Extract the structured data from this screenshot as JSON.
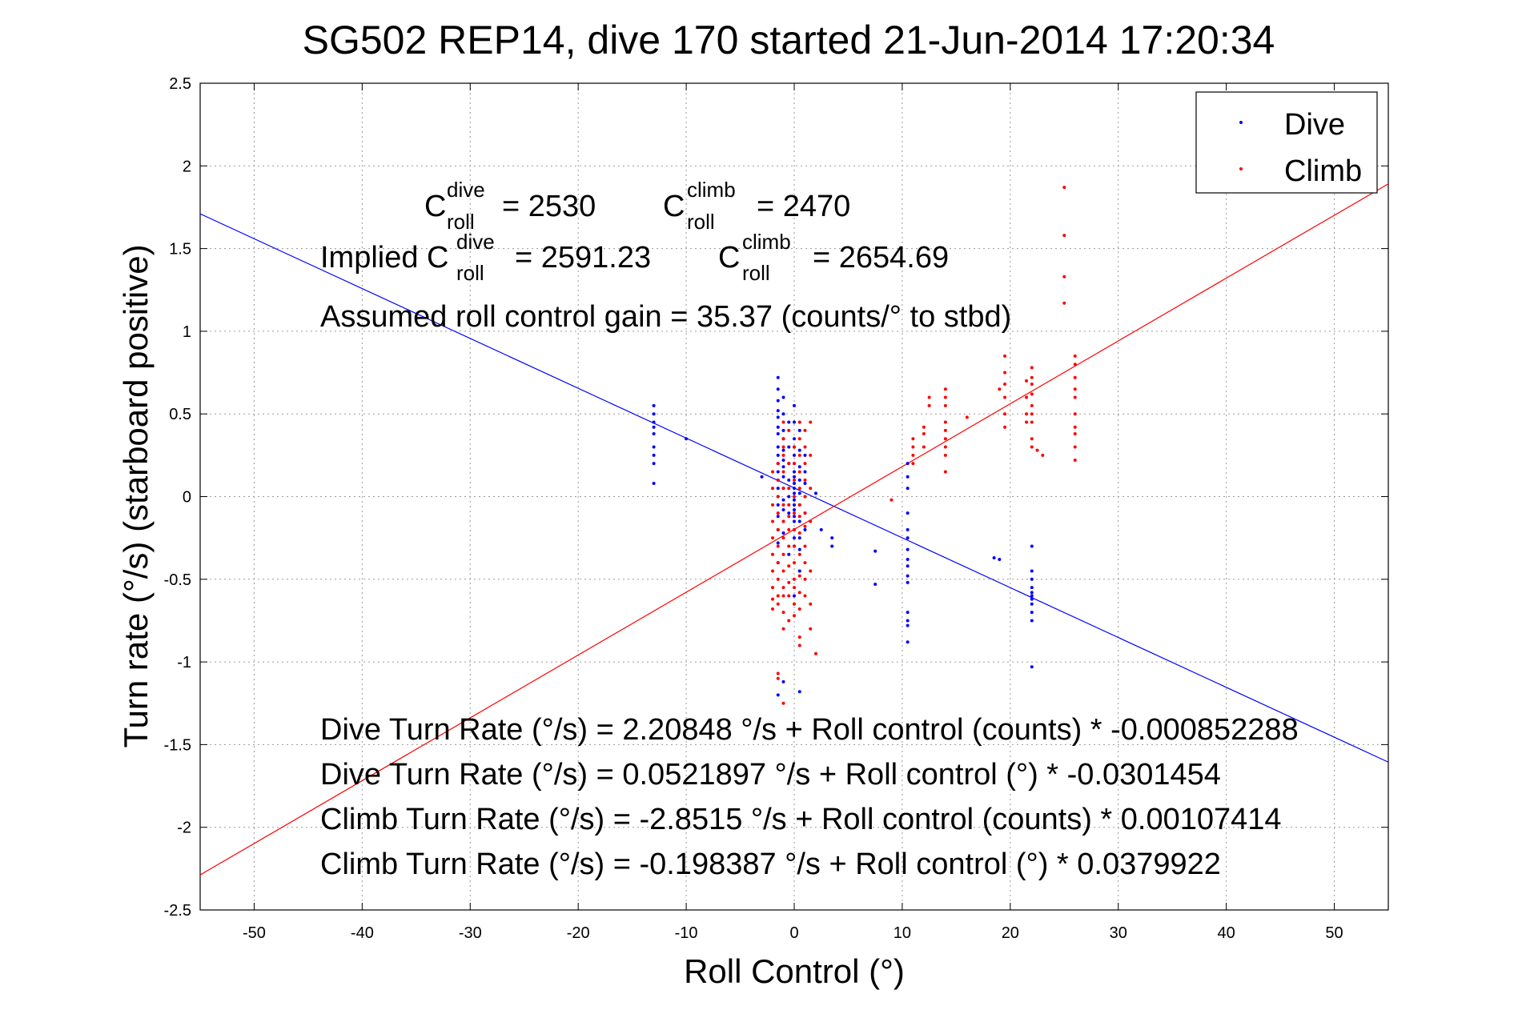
{
  "chart_data": {
    "type": "scatter",
    "title": "SG502 REP14, dive 170 started 21-Jun-2014 17:20:34",
    "xlabel": "Roll Control (°)",
    "ylabel": "Turn rate (°/s) (starboard positive)",
    "xlim": [
      -55,
      55
    ],
    "ylim": [
      -2.5,
      2.5
    ],
    "x_ticks": [
      "-50",
      "-40",
      "-30",
      "-20",
      "-10",
      "0",
      "10",
      "20",
      "30",
      "40",
      "50"
    ],
    "y_ticks": [
      "2.5",
      "2",
      "1.5",
      "1",
      "0.5",
      "0",
      "-0.5",
      "-1",
      "-1.5",
      "-2",
      "-2.5"
    ],
    "grid": true,
    "legend_position": "top-right",
    "series": [
      {
        "name": "Dive",
        "color": "#0000ff",
        "marker": "point",
        "points": [
          [
            -13,
            0.55
          ],
          [
            -13,
            0.5
          ],
          [
            -13,
            0.45
          ],
          [
            -13,
            0.42
          ],
          [
            -13,
            0.38
          ],
          [
            -13,
            0.3
          ],
          [
            -13,
            0.25
          ],
          [
            -13,
            0.2
          ],
          [
            -13,
            0.08
          ],
          [
            -10,
            0.35
          ],
          [
            -3,
            0.12
          ],
          [
            -1.5,
            0.72
          ],
          [
            -1.5,
            0.65
          ],
          [
            -1.5,
            0.58
          ],
          [
            -1.5,
            0.52
          ],
          [
            -1.5,
            0.48
          ],
          [
            -1.5,
            0.42
          ],
          [
            -1.5,
            0.38
          ],
          [
            -1.5,
            0.3
          ],
          [
            -1.5,
            0.25
          ],
          [
            -1.5,
            0.2
          ],
          [
            -1.5,
            0.15
          ],
          [
            -1.5,
            0.1
          ],
          [
            -1.5,
            0.05
          ],
          [
            -1.5,
            0
          ],
          [
            -1.5,
            -0.05
          ],
          [
            -1.5,
            -0.12
          ],
          [
            -1.5,
            -0.2
          ],
          [
            -1.5,
            -0.28
          ],
          [
            -1,
            0.6
          ],
          [
            -1,
            0.5
          ],
          [
            -1,
            0.4
          ],
          [
            -1,
            0.35
          ],
          [
            -1,
            0.28
          ],
          [
            -1,
            0.22
          ],
          [
            -1,
            0.18
          ],
          [
            -1,
            0.12
          ],
          [
            -1,
            0.05
          ],
          [
            -1,
            -0.02
          ],
          [
            -1,
            -0.08
          ],
          [
            -1,
            -0.15
          ],
          [
            -1,
            -0.22
          ],
          [
            -0.5,
            0.45
          ],
          [
            -0.5,
            0.3
          ],
          [
            -0.5,
            0.2
          ],
          [
            -0.5,
            0.1
          ],
          [
            -0.5,
            0
          ],
          [
            -0.5,
            -0.1
          ],
          [
            0,
            0.55
          ],
          [
            0,
            0.45
          ],
          [
            0,
            0.35
          ],
          [
            0,
            0.3
          ],
          [
            0,
            0.25
          ],
          [
            0,
            0.2
          ],
          [
            0,
            0.15
          ],
          [
            0,
            0.12
          ],
          [
            0,
            0.08
          ],
          [
            0,
            0.05
          ],
          [
            0,
            0.02
          ],
          [
            0,
            -0.02
          ],
          [
            0,
            -0.05
          ],
          [
            0,
            -0.08
          ],
          [
            0,
            -0.12
          ],
          [
            0,
            -0.15
          ],
          [
            0,
            -0.2
          ],
          [
            0,
            -0.25
          ],
          [
            0,
            -0.3
          ],
          [
            0.5,
            0.4
          ],
          [
            0.5,
            0.28
          ],
          [
            0.5,
            0.18
          ],
          [
            0.5,
            0.1
          ],
          [
            0.5,
            0.02
          ],
          [
            0.5,
            -0.05
          ],
          [
            0.5,
            -0.15
          ],
          [
            0.5,
            -0.25
          ],
          [
            0.5,
            -0.32
          ],
          [
            0.5,
            -0.45
          ],
          [
            1,
            0.25
          ],
          [
            1,
            0.15
          ],
          [
            1,
            0.08
          ],
          [
            1,
            0.0
          ],
          [
            1,
            -0.1
          ],
          [
            1,
            -0.2
          ],
          [
            -1.5,
            -1.2
          ],
          [
            -1,
            -1.12
          ],
          [
            0.5,
            -1.18
          ],
          [
            2,
            0.02
          ],
          [
            2.5,
            -0.2
          ],
          [
            3.5,
            -0.25
          ],
          [
            3.5,
            -0.3
          ],
          [
            7.5,
            -0.33
          ],
          [
            7.5,
            -0.53
          ],
          [
            10.5,
            0.2
          ],
          [
            10.5,
            0.12
          ],
          [
            10.5,
            0.05
          ],
          [
            10.5,
            -0.1
          ],
          [
            10.5,
            -0.2
          ],
          [
            10.5,
            -0.25
          ],
          [
            10.5,
            -0.32
          ],
          [
            10.5,
            -0.38
          ],
          [
            10.5,
            -0.42
          ],
          [
            10.5,
            -0.48
          ],
          [
            10.5,
            -0.52
          ],
          [
            10.5,
            -0.7
          ],
          [
            10.5,
            -0.75
          ],
          [
            10.5,
            -0.78
          ],
          [
            10.5,
            -0.88
          ],
          [
            18.5,
            -0.37
          ],
          [
            19,
            -0.38
          ],
          [
            22,
            -0.3
          ],
          [
            22,
            -0.45
          ],
          [
            22,
            -0.5
          ],
          [
            22,
            -0.55
          ],
          [
            22,
            -0.58
          ],
          [
            22,
            -0.6
          ],
          [
            22,
            -0.62
          ],
          [
            22,
            -0.65
          ],
          [
            22,
            -0.7
          ],
          [
            22,
            -0.75
          ],
          [
            22,
            -1.03
          ],
          [
            -1.5,
            -0.4
          ],
          [
            0,
            -0.6
          ],
          [
            -0.5,
            -0.35
          ]
        ]
      },
      {
        "name": "Climb",
        "color": "#ff0000",
        "marker": "point",
        "points": [
          [
            -2,
            0.15
          ],
          [
            -2,
            0.05
          ],
          [
            -2,
            -0.05
          ],
          [
            -2,
            -0.15
          ],
          [
            -2,
            -0.25
          ],
          [
            -2,
            -0.35
          ],
          [
            -2,
            -0.45
          ],
          [
            -2,
            -0.55
          ],
          [
            -2,
            -0.62
          ],
          [
            -2,
            -0.68
          ],
          [
            -1.5,
            0.2
          ],
          [
            -1.5,
            0.1
          ],
          [
            -1.5,
            0
          ],
          [
            -1.5,
            -0.1
          ],
          [
            -1.5,
            -0.2
          ],
          [
            -1.5,
            -0.3
          ],
          [
            -1.5,
            -0.4
          ],
          [
            -1.5,
            -0.5
          ],
          [
            -1.5,
            -0.6
          ],
          [
            -1.5,
            -0.65
          ],
          [
            -1,
            0.45
          ],
          [
            -1,
            0.35
          ],
          [
            -1,
            0.3
          ],
          [
            -1,
            0.25
          ],
          [
            -1,
            0.15
          ],
          [
            -1,
            0.05
          ],
          [
            -1,
            -0.05
          ],
          [
            -1,
            -0.15
          ],
          [
            -1,
            -0.25
          ],
          [
            -1,
            -0.35
          ],
          [
            -1,
            -0.45
          ],
          [
            -1,
            -0.55
          ],
          [
            -1,
            -0.6
          ],
          [
            -1,
            -0.7
          ],
          [
            -1,
            -0.8
          ],
          [
            -0.5,
            0.4
          ],
          [
            -0.5,
            0.2
          ],
          [
            -0.5,
            0.05
          ],
          [
            -0.5,
            -0.05
          ],
          [
            -0.5,
            -0.12
          ],
          [
            -0.5,
            -0.2
          ],
          [
            -0.5,
            -0.3
          ],
          [
            -0.5,
            -0.42
          ],
          [
            -0.5,
            -0.52
          ],
          [
            -0.5,
            -0.6
          ],
          [
            -0.5,
            -0.75
          ],
          [
            0,
            0.3
          ],
          [
            0,
            0.2
          ],
          [
            0,
            0.1
          ],
          [
            0,
            0
          ],
          [
            0,
            -0.1
          ],
          [
            0,
            -0.2
          ],
          [
            0,
            -0.3
          ],
          [
            0,
            -0.4
          ],
          [
            0,
            -0.5
          ],
          [
            0,
            -0.55
          ],
          [
            0,
            -0.65
          ],
          [
            0,
            -0.72
          ],
          [
            0.5,
            0.45
          ],
          [
            0.5,
            0.35
          ],
          [
            0.5,
            0.25
          ],
          [
            0.5,
            0.15
          ],
          [
            0.5,
            0.05
          ],
          [
            0.5,
            -0.05
          ],
          [
            0.5,
            -0.12
          ],
          [
            0.5,
            -0.22
          ],
          [
            0.5,
            -0.35
          ],
          [
            0.5,
            -0.48
          ],
          [
            0.5,
            -0.58
          ],
          [
            0.5,
            -0.68
          ],
          [
            0.5,
            -0.85
          ],
          [
            0.5,
            -0.9
          ],
          [
            1,
            0.4
          ],
          [
            1,
            0.3
          ],
          [
            1,
            0.2
          ],
          [
            1,
            0.1
          ],
          [
            1,
            0.0
          ],
          [
            1,
            -0.1
          ],
          [
            1,
            -0.18
          ],
          [
            1,
            -0.3
          ],
          [
            1,
            -0.4
          ],
          [
            1,
            -0.5
          ],
          [
            1,
            -0.6
          ],
          [
            1.5,
            0.45
          ],
          [
            1.5,
            0.25
          ],
          [
            1.5,
            0.05
          ],
          [
            1.5,
            -0.15
          ],
          [
            1.5,
            -0.45
          ],
          [
            1.5,
            -0.65
          ],
          [
            1.5,
            -0.8
          ],
          [
            -1.5,
            -1.07
          ],
          [
            -1.5,
            -1.1
          ],
          [
            -1,
            -1.25
          ],
          [
            0,
            -1.4
          ],
          [
            2,
            -0.95
          ],
          [
            9,
            -0.02
          ],
          [
            11,
            0.35
          ],
          [
            11,
            0.3
          ],
          [
            11,
            0.25
          ],
          [
            11,
            0.2
          ],
          [
            12,
            0.42
          ],
          [
            12,
            0.38
          ],
          [
            12,
            0.3
          ],
          [
            12.5,
            0.6
          ],
          [
            12.5,
            0.55
          ],
          [
            14,
            0.65
          ],
          [
            14,
            0.6
          ],
          [
            14,
            0.55
          ],
          [
            14,
            0.45
          ],
          [
            14,
            0.4
          ],
          [
            14,
            0.35
          ],
          [
            14,
            0.3
          ],
          [
            14,
            0.25
          ],
          [
            14,
            0.15
          ],
          [
            16,
            0.48
          ],
          [
            19,
            0.65
          ],
          [
            19.5,
            0.85
          ],
          [
            19.5,
            0.75
          ],
          [
            19.5,
            0.68
          ],
          [
            19.5,
            0.6
          ],
          [
            19.5,
            0.5
          ],
          [
            19.5,
            0.42
          ],
          [
            21.5,
            0.7
          ],
          [
            21.5,
            0.6
          ],
          [
            21.5,
            0.5
          ],
          [
            21.5,
            0.45
          ],
          [
            22,
            0.78
          ],
          [
            22,
            0.72
          ],
          [
            22,
            0.68
          ],
          [
            22,
            0.62
          ],
          [
            22,
            0.55
          ],
          [
            22,
            0.5
          ],
          [
            22,
            0.45
          ],
          [
            22,
            0.35
          ],
          [
            22,
            0.3
          ],
          [
            22.5,
            0.28
          ],
          [
            23,
            0.25
          ],
          [
            25,
            1.87
          ],
          [
            25,
            1.58
          ],
          [
            25,
            1.33
          ],
          [
            25,
            1.17
          ],
          [
            26,
            0.85
          ],
          [
            26,
            0.8
          ],
          [
            26,
            0.72
          ],
          [
            26,
            0.65
          ],
          [
            26,
            0.6
          ],
          [
            26,
            0.5
          ],
          [
            26,
            0.42
          ],
          [
            26,
            0.38
          ],
          [
            26,
            0.3
          ],
          [
            26,
            0.22
          ]
        ]
      }
    ],
    "fit_lines": [
      {
        "name": "Dive",
        "color": "#0000ff",
        "intercept": 0.0521897,
        "slope": -0.0301454
      },
      {
        "name": "Climb",
        "color": "#ff0000",
        "intercept": -0.198387,
        "slope": 0.0379922
      }
    ],
    "annotations": {
      "c_roll_dive": {
        "base": "C",
        "sup": "dive",
        "sub": "roll",
        "value": "= 2530"
      },
      "c_roll_climb": {
        "base": "C",
        "sup": "climb",
        "sub": "roll",
        "value": "= 2470"
      },
      "implied_prefix": "Implied C",
      "implied_dive": {
        "sup": "dive",
        "sub": "roll",
        "value": "= 2591.23"
      },
      "implied_climb": {
        "base": "C",
        "sup": "climb",
        "sub": "roll",
        "value": "= 2654.69"
      },
      "gain": "Assumed roll control gain = 35.37 (counts/° to stbd)",
      "eq1": "Dive Turn Rate (°/s) = 2.20848 °/s + Roll control (counts) * -0.000852288",
      "eq2": "Dive Turn Rate (°/s) = 0.0521897 °/s + Roll control (°) * -0.0301454",
      "eq3": "Climb Turn Rate (°/s) = -2.8515 °/s + Roll control (counts) * 0.00107414",
      "eq4": "Climb Turn Rate (°/s) = -0.198387 °/s + Roll control (°) * 0.0379922"
    }
  }
}
